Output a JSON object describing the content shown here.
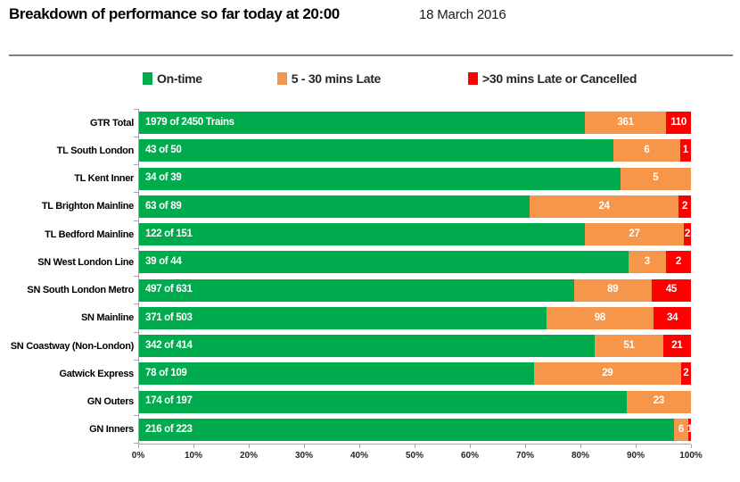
{
  "header": {
    "title": "Breakdown of performance so far today at 20:00",
    "date": "18 March 2016"
  },
  "legend": [
    {
      "label": "On-time",
      "color": "#00AB4E"
    },
    {
      "label": "5 - 30 mins Late",
      "color": "#F6964A"
    },
    {
      "label": ">30 mins Late or Cancelled",
      "color": "#FD0000"
    }
  ],
  "chart_data": {
    "type": "bar",
    "orientation": "horizontal",
    "stacked": true,
    "title": "Breakdown of performance so far today at 20:00",
    "subtitle": "18 March 2016",
    "unit": "trains",
    "series_names": [
      "On-time",
      "5 - 30 mins Late",
      ">30 mins Late or Cancelled"
    ],
    "colors": {
      "on_time": "#00AB4E",
      "late": "#F6964A",
      "very_late": "#FD0000"
    },
    "x_axis": {
      "range": [
        0,
        100
      ],
      "ticks": [
        "0%",
        "10%",
        "20%",
        "30%",
        "40%",
        "50%",
        "60%",
        "70%",
        "80%",
        "90%",
        "100%"
      ]
    },
    "rows": [
      {
        "label": "GTR Total",
        "total": 2450,
        "on_time": 1979,
        "late": 361,
        "very_late": 110,
        "on_time_label": "1979 of 2450 Trains",
        "late_label": "361",
        "very_late_label": "110"
      },
      {
        "label": "TL South London",
        "total": 50,
        "on_time": 43,
        "late": 6,
        "very_late": 1,
        "on_time_label": "43 of 50",
        "late_label": "6",
        "very_late_label": "1"
      },
      {
        "label": "TL Kent Inner",
        "total": 39,
        "on_time": 34,
        "late": 5,
        "very_late": 0,
        "on_time_label": "34 of 39",
        "late_label": "5",
        "very_late_label": ""
      },
      {
        "label": "TL Brighton Mainline",
        "total": 89,
        "on_time": 63,
        "late": 24,
        "very_late": 2,
        "on_time_label": "63 of 89",
        "late_label": "24",
        "very_late_label": "2"
      },
      {
        "label": "TL Bedford Mainline",
        "total": 151,
        "on_time": 122,
        "late": 27,
        "very_late": 2,
        "on_time_label": "122 of 151",
        "late_label": "27",
        "very_late_label": "2"
      },
      {
        "label": "SN West London Line",
        "total": 44,
        "on_time": 39,
        "late": 3,
        "very_late": 2,
        "on_time_label": "39 of 44",
        "late_label": "3",
        "very_late_label": "2"
      },
      {
        "label": "SN South London Metro",
        "total": 631,
        "on_time": 497,
        "late": 89,
        "very_late": 45,
        "on_time_label": "497 of 631",
        "late_label": "89",
        "very_late_label": "45"
      },
      {
        "label": "SN Mainline",
        "total": 503,
        "on_time": 371,
        "late": 98,
        "very_late": 34,
        "on_time_label": "371 of 503",
        "late_label": "98",
        "very_late_label": "34"
      },
      {
        "label": "SN Coastway (Non-London)",
        "total": 414,
        "on_time": 342,
        "late": 51,
        "very_late": 21,
        "on_time_label": "342 of 414",
        "late_label": "51",
        "very_late_label": "21"
      },
      {
        "label": "Gatwick Express",
        "total": 109,
        "on_time": 78,
        "late": 29,
        "very_late": 2,
        "on_time_label": "78 of 109",
        "late_label": "29",
        "very_late_label": "2"
      },
      {
        "label": "GN Outers",
        "total": 197,
        "on_time": 174,
        "late": 23,
        "very_late": 0,
        "on_time_label": "174 of 197",
        "late_label": "23",
        "very_late_label": ""
      },
      {
        "label": "GN Inners",
        "total": 223,
        "on_time": 216,
        "late": 6,
        "very_late": 1,
        "on_time_label": "216 of 223",
        "late_label": "6",
        "very_late_label": "1"
      }
    ]
  }
}
